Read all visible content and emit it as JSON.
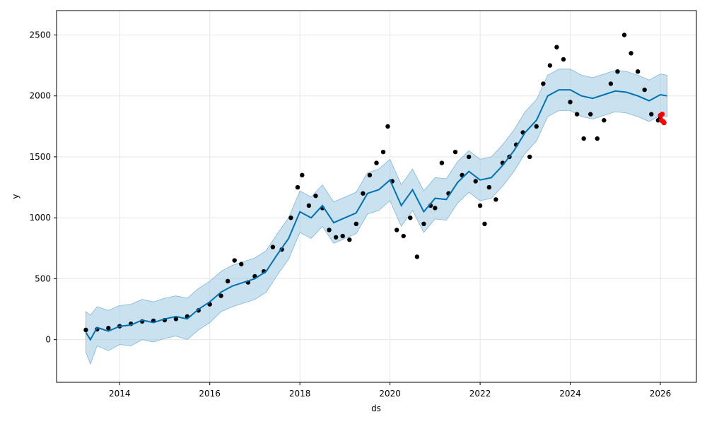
{
  "chart_data": {
    "type": "line",
    "title": "",
    "xlabel": "ds",
    "ylabel": "y",
    "xlim": [
      2012.6,
      2026.8
    ],
    "ylim": [
      -350,
      2700
    ],
    "xticks": [
      2014,
      2016,
      2018,
      2020,
      2022,
      2024,
      2026
    ],
    "xtick_labels": [
      "2014",
      "2016",
      "2018",
      "2020",
      "2022",
      "2024",
      "2026"
    ],
    "yticks": [
      0,
      500,
      1000,
      1500,
      2000,
      2500
    ],
    "ytick_labels": [
      "0",
      "500",
      "1000",
      "1500",
      "2000",
      "2500"
    ],
    "grid": true,
    "colors": {
      "observed": "#000000",
      "forecast": "#0072B2",
      "interval": "#9ecae1",
      "actual_recent": "#ff0000"
    },
    "series": [
      {
        "kind": "scatter",
        "x": [
          2013.25,
          2013.5,
          2013.75,
          2014.0,
          2014.25,
          2014.5,
          2014.75,
          2015.0,
          2015.25,
          2015.5,
          2015.75,
          2016.0,
          2016.25,
          2016.4,
          2016.55,
          2016.7,
          2016.85,
          2017.0,
          2017.2,
          2017.4,
          2017.6,
          2017.8,
          2017.95,
          2018.05,
          2018.2,
          2018.35,
          2018.5,
          2018.65,
          2018.8,
          2018.95,
          2019.1,
          2019.25,
          2019.4,
          2019.55,
          2019.7,
          2019.85,
          2019.95,
          2020.05,
          2020.15,
          2020.3,
          2020.45,
          2020.6,
          2020.75,
          2020.9,
          2021.0,
          2021.15,
          2021.3,
          2021.45,
          2021.6,
          2021.75,
          2021.9,
          2022.0,
          2022.1,
          2022.2,
          2022.35,
          2022.5,
          2022.65,
          2022.8,
          2022.95,
          2023.1,
          2023.25,
          2023.4,
          2023.55,
          2023.7,
          2023.85,
          2024.0,
          2024.15,
          2024.3,
          2024.45,
          2024.6,
          2024.75,
          2024.9,
          2025.05,
          2025.2,
          2025.35,
          2025.5,
          2025.65,
          2025.8,
          2025.95,
          2026.0
        ],
        "y": [
          80,
          85,
          95,
          110,
          130,
          150,
          155,
          160,
          170,
          190,
          240,
          290,
          360,
          480,
          650,
          620,
          470,
          520,
          560,
          760,
          740,
          1000,
          1250,
          1350,
          1100,
          1180,
          1080,
          900,
          840,
          850,
          820,
          950,
          1200,
          1350,
          1450,
          1540,
          1750,
          1300,
          900,
          850,
          1000,
          680,
          950,
          1100,
          1080,
          1450,
          1200,
          1540,
          1350,
          1500,
          1300,
          1100,
          950,
          1250,
          1150,
          1450,
          1500,
          1600,
          1700,
          1500,
          1750,
          2100,
          2250,
          2400,
          2300,
          1950,
          1850,
          1650,
          1850,
          1650,
          1800,
          2100,
          2200,
          2500,
          2350,
          2200,
          2050,
          1850,
          1800,
          1820
        ]
      },
      {
        "kind": "scatter-recent",
        "x": [
          2026.0,
          2026.02,
          2026.04,
          2026.06,
          2026.08
        ],
        "y": [
          1840,
          1800,
          1850,
          1790,
          1780
        ]
      },
      {
        "kind": "forecast-line",
        "x": [
          2013.25,
          2013.35,
          2013.5,
          2013.75,
          2014.0,
          2014.25,
          2014.5,
          2014.75,
          2015.0,
          2015.25,
          2015.5,
          2015.75,
          2016.0,
          2016.25,
          2016.5,
          2016.75,
          2017.0,
          2017.25,
          2017.5,
          2017.75,
          2018.0,
          2018.25,
          2018.5,
          2018.75,
          2019.0,
          2019.25,
          2019.5,
          2019.75,
          2020.0,
          2020.25,
          2020.5,
          2020.75,
          2021.0,
          2021.25,
          2021.5,
          2021.75,
          2022.0,
          2022.25,
          2022.5,
          2022.75,
          2023.0,
          2023.25,
          2023.5,
          2023.75,
          2024.0,
          2024.25,
          2024.5,
          2024.75,
          2025.0,
          2025.25,
          2025.5,
          2025.75,
          2026.0,
          2026.15
        ],
        "y": [
          60,
          0,
          100,
          70,
          110,
          120,
          160,
          140,
          170,
          190,
          170,
          250,
          310,
          390,
          440,
          470,
          500,
          560,
          700,
          830,
          1050,
          1000,
          1100,
          960,
          1000,
          1040,
          1200,
          1230,
          1310,
          1100,
          1230,
          1050,
          1160,
          1150,
          1290,
          1380,
          1310,
          1330,
          1430,
          1550,
          1700,
          1800,
          2000,
          2050,
          2050,
          2000,
          1980,
          2010,
          2040,
          2030,
          2000,
          1960,
          2010,
          2000
        ]
      },
      {
        "kind": "interval",
        "x": [
          2013.25,
          2013.35,
          2013.5,
          2013.75,
          2014.0,
          2014.25,
          2014.5,
          2014.75,
          2015.0,
          2015.25,
          2015.5,
          2015.75,
          2016.0,
          2016.25,
          2016.5,
          2016.75,
          2017.0,
          2017.25,
          2017.5,
          2017.75,
          2018.0,
          2018.25,
          2018.5,
          2018.75,
          2019.0,
          2019.25,
          2019.5,
          2019.75,
          2020.0,
          2020.25,
          2020.5,
          2020.75,
          2021.0,
          2021.25,
          2021.5,
          2021.75,
          2022.0,
          2022.25,
          2022.5,
          2022.75,
          2023.0,
          2023.25,
          2023.5,
          2023.75,
          2024.0,
          2024.25,
          2024.5,
          2024.75,
          2025.0,
          2025.25,
          2025.5,
          2025.75,
          2026.0,
          2026.15
        ],
        "lower": [
          -100,
          -200,
          -50,
          -90,
          -40,
          -50,
          0,
          -20,
          10,
          30,
          0,
          80,
          140,
          230,
          270,
          300,
          330,
          390,
          530,
          660,
          880,
          830,
          930,
          790,
          830,
          870,
          1030,
          1060,
          1140,
          930,
          1060,
          880,
          990,
          980,
          1120,
          1210,
          1140,
          1160,
          1260,
          1380,
          1530,
          1630,
          1830,
          1880,
          1880,
          1830,
          1810,
          1840,
          1870,
          1860,
          1830,
          1790,
          1840,
          1830
        ],
        "upper": [
          230,
          200,
          270,
          240,
          280,
          290,
          330,
          310,
          340,
          360,
          340,
          420,
          480,
          560,
          610,
          640,
          670,
          730,
          870,
          1000,
          1220,
          1170,
          1270,
          1130,
          1170,
          1210,
          1370,
          1400,
          1480,
          1270,
          1400,
          1220,
          1330,
          1320,
          1460,
          1550,
          1480,
          1500,
          1600,
          1720,
          1870,
          1970,
          2170,
          2220,
          2220,
          2170,
          2150,
          2180,
          2210,
          2200,
          2170,
          2130,
          2180,
          2170
        ]
      }
    ]
  }
}
